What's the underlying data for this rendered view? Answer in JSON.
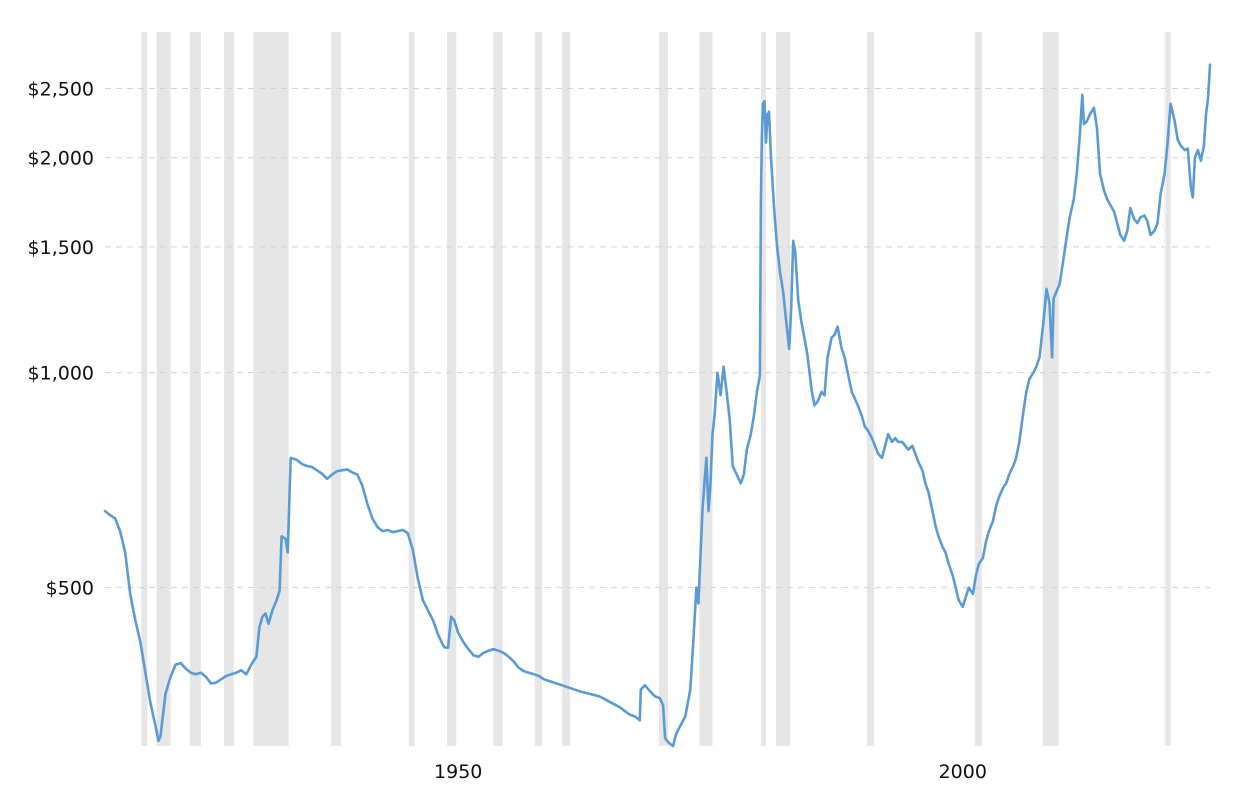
{
  "chart_data": {
    "type": "line",
    "title": "",
    "xlabel": "",
    "ylabel": "",
    "y_scale": "log",
    "xlim": [
      1915,
      2024.5
    ],
    "ylim": [
      300,
      3000
    ],
    "grid": {
      "horizontal": true,
      "vertical": false,
      "style": "dashed"
    },
    "legend": "none",
    "colors": {
      "line": "#5b9bd5",
      "recession": "#e6e6e6",
      "grid": "#d4d4d4",
      "axis_text": "#111111"
    },
    "y_ticks": [
      {
        "value": 500,
        "label": "$500"
      },
      {
        "value": 1000,
        "label": "$1,000"
      },
      {
        "value": 1500,
        "label": "$1,500"
      },
      {
        "value": 2000,
        "label": "$2,000"
      },
      {
        "value": 2500,
        "label": "$2,500"
      }
    ],
    "x_ticks": [
      {
        "value": 1950,
        "label": "1950"
      },
      {
        "value": 2000,
        "label": "2000"
      }
    ],
    "recessions": [
      [
        1918.6,
        1919.2
      ],
      [
        1920.1,
        1921.5
      ],
      [
        1923.4,
        1924.5
      ],
      [
        1926.8,
        1927.8
      ],
      [
        1929.7,
        1933.2
      ],
      [
        1937.4,
        1938.4
      ],
      [
        1945.1,
        1945.7
      ],
      [
        1948.9,
        1949.8
      ],
      [
        1953.5,
        1954.4
      ],
      [
        1957.6,
        1958.3
      ],
      [
        1960.3,
        1961.1
      ],
      [
        1969.9,
        1970.8
      ],
      [
        1973.9,
        1975.2
      ],
      [
        1980.0,
        1980.5
      ],
      [
        1981.5,
        1982.9
      ],
      [
        1990.5,
        1991.2
      ],
      [
        2001.2,
        2001.9
      ],
      [
        2007.9,
        2009.5
      ],
      [
        2020.1,
        2020.4
      ]
    ],
    "series": [
      {
        "values": [
          [
            1915.0,
            640
          ],
          [
            1915.5,
            632
          ],
          [
            1916.0,
            625
          ],
          [
            1916.5,
            600
          ],
          [
            1917.0,
            560
          ],
          [
            1917.5,
            490
          ],
          [
            1918.0,
            450
          ],
          [
            1918.5,
            420
          ],
          [
            1919.0,
            380
          ],
          [
            1919.5,
            345
          ],
          [
            1920.0,
            320
          ],
          [
            1920.3,
            305
          ],
          [
            1920.5,
            310
          ],
          [
            1921.0,
            355
          ],
          [
            1921.5,
            375
          ],
          [
            1922.0,
            390
          ],
          [
            1922.5,
            392
          ],
          [
            1923.0,
            385
          ],
          [
            1923.5,
            380
          ],
          [
            1924.0,
            378
          ],
          [
            1924.5,
            380
          ],
          [
            1925.0,
            375
          ],
          [
            1925.5,
            367
          ],
          [
            1926.0,
            368
          ],
          [
            1926.5,
            372
          ],
          [
            1927.0,
            376
          ],
          [
            1927.5,
            378
          ],
          [
            1928.0,
            380
          ],
          [
            1928.5,
            383
          ],
          [
            1929.0,
            378
          ],
          [
            1929.5,
            390
          ],
          [
            1930.0,
            400
          ],
          [
            1930.3,
            440
          ],
          [
            1930.6,
            455
          ],
          [
            1930.9,
            460
          ],
          [
            1931.2,
            445
          ],
          [
            1931.6,
            465
          ],
          [
            1932.0,
            480
          ],
          [
            1932.3,
            495
          ],
          [
            1932.5,
            590
          ],
          [
            1932.9,
            585
          ],
          [
            1933.1,
            560
          ],
          [
            1933.4,
            760
          ],
          [
            1934.0,
            755
          ],
          [
            1934.5,
            745
          ],
          [
            1935.0,
            740
          ],
          [
            1935.5,
            738
          ],
          [
            1936.0,
            730
          ],
          [
            1936.5,
            722
          ],
          [
            1937.0,
            710
          ],
          [
            1937.5,
            720
          ],
          [
            1938.0,
            728
          ],
          [
            1938.5,
            730
          ],
          [
            1939.0,
            732
          ],
          [
            1939.5,
            725
          ],
          [
            1940.0,
            720
          ],
          [
            1940.5,
            695
          ],
          [
            1941.0,
            655
          ],
          [
            1941.5,
            625
          ],
          [
            1942.0,
            608
          ],
          [
            1942.5,
            600
          ],
          [
            1943.0,
            602
          ],
          [
            1943.5,
            598
          ],
          [
            1944.0,
            600
          ],
          [
            1944.5,
            602
          ],
          [
            1945.0,
            596
          ],
          [
            1945.5,
            565
          ],
          [
            1946.0,
            515
          ],
          [
            1946.5,
            480
          ],
          [
            1947.0,
            465
          ],
          [
            1947.5,
            450
          ],
          [
            1948.0,
            430
          ],
          [
            1948.5,
            415
          ],
          [
            1948.7,
            412
          ],
          [
            1949.0,
            412
          ],
          [
            1949.3,
            455
          ],
          [
            1949.6,
            450
          ],
          [
            1950.0,
            432
          ],
          [
            1950.5,
            420
          ],
          [
            1951.0,
            410
          ],
          [
            1951.5,
            402
          ],
          [
            1952.0,
            400
          ],
          [
            1952.5,
            405
          ],
          [
            1953.0,
            408
          ],
          [
            1953.5,
            410
          ],
          [
            1954.0,
            408
          ],
          [
            1954.5,
            405
          ],
          [
            1955.0,
            400
          ],
          [
            1955.5,
            394
          ],
          [
            1956.0,
            386
          ],
          [
            1956.5,
            382
          ],
          [
            1957.0,
            380
          ],
          [
            1957.5,
            378
          ],
          [
            1958.0,
            376
          ],
          [
            1958.5,
            372
          ],
          [
            1959.0,
            370
          ],
          [
            1960.0,
            366
          ],
          [
            1961.0,
            362
          ],
          [
            1962.0,
            358
          ],
          [
            1963.0,
            355
          ],
          [
            1964.0,
            352
          ],
          [
            1965.0,
            346
          ],
          [
            1966.0,
            340
          ],
          [
            1966.5,
            336
          ],
          [
            1967.0,
            332
          ],
          [
            1967.5,
            330
          ],
          [
            1968.0,
            326
          ],
          [
            1968.1,
            360
          ],
          [
            1968.5,
            365
          ],
          [
            1969.0,
            358
          ],
          [
            1969.5,
            352
          ],
          [
            1970.0,
            350
          ],
          [
            1970.3,
            342
          ],
          [
            1970.5,
            308
          ],
          [
            1970.7,
            305
          ],
          [
            1971.0,
            302
          ],
          [
            1971.3,
            300
          ],
          [
            1971.6,
            312
          ],
          [
            1972.0,
            320
          ],
          [
            1972.5,
            330
          ],
          [
            1973.0,
            360
          ],
          [
            1973.3,
            420
          ],
          [
            1973.6,
            500
          ],
          [
            1973.8,
            475
          ],
          [
            1974.0,
            550
          ],
          [
            1974.2,
            640
          ],
          [
            1974.4,
            700
          ],
          [
            1974.6,
            760
          ],
          [
            1974.8,
            640
          ],
          [
            1975.0,
            700
          ],
          [
            1975.2,
            820
          ],
          [
            1975.4,
            870
          ],
          [
            1975.7,
            1000
          ],
          [
            1976.0,
            930
          ],
          [
            1976.3,
            1020
          ],
          [
            1976.6,
            940
          ],
          [
            1976.9,
            860
          ],
          [
            1977.2,
            740
          ],
          [
            1977.6,
            720
          ],
          [
            1978.0,
            700
          ],
          [
            1978.3,
            720
          ],
          [
            1978.6,
            780
          ],
          [
            1979.0,
            820
          ],
          [
            1979.3,
            870
          ],
          [
            1979.6,
            940
          ],
          [
            1979.9,
            990
          ],
          [
            1980.0,
            1750
          ],
          [
            1980.1,
            2150
          ],
          [
            1980.2,
            2380
          ],
          [
            1980.35,
            2400
          ],
          [
            1980.5,
            2100
          ],
          [
            1980.65,
            2300
          ],
          [
            1980.8,
            2320
          ],
          [
            1981.0,
            2000
          ],
          [
            1981.3,
            1700
          ],
          [
            1981.6,
            1500
          ],
          [
            1981.9,
            1380
          ],
          [
            1982.2,
            1300
          ],
          [
            1982.5,
            1180
          ],
          [
            1982.8,
            1080
          ],
          [
            1983.0,
            1230
          ],
          [
            1983.2,
            1530
          ],
          [
            1983.4,
            1480
          ],
          [
            1983.7,
            1260
          ],
          [
            1984.0,
            1180
          ],
          [
            1984.3,
            1120
          ],
          [
            1984.6,
            1060
          ],
          [
            1985.0,
            950
          ],
          [
            1985.3,
            900
          ],
          [
            1985.6,
            910
          ],
          [
            1986.0,
            940
          ],
          [
            1986.3,
            930
          ],
          [
            1986.6,
            1050
          ],
          [
            1987.0,
            1120
          ],
          [
            1987.3,
            1130
          ],
          [
            1987.6,
            1160
          ],
          [
            1988.0,
            1080
          ],
          [
            1988.3,
            1050
          ],
          [
            1988.6,
            1000
          ],
          [
            1989.0,
            940
          ],
          [
            1989.3,
            920
          ],
          [
            1989.6,
            900
          ],
          [
            1990.0,
            870
          ],
          [
            1990.3,
            840
          ],
          [
            1990.6,
            830
          ],
          [
            1991.0,
            810
          ],
          [
            1991.3,
            790
          ],
          [
            1991.6,
            770
          ],
          [
            1992.0,
            760
          ],
          [
            1992.3,
            790
          ],
          [
            1992.6,
            820
          ],
          [
            1993.0,
            800
          ],
          [
            1993.3,
            810
          ],
          [
            1993.6,
            800
          ],
          [
            1994.0,
            800
          ],
          [
            1994.3,
            790
          ],
          [
            1994.6,
            780
          ],
          [
            1995.0,
            790
          ],
          [
            1995.3,
            770
          ],
          [
            1995.6,
            750
          ],
          [
            1996.0,
            730
          ],
          [
            1996.3,
            700
          ],
          [
            1996.6,
            680
          ],
          [
            1997.0,
            640
          ],
          [
            1997.3,
            610
          ],
          [
            1997.6,
            590
          ],
          [
            1998.0,
            570
          ],
          [
            1998.3,
            560
          ],
          [
            1998.6,
            540
          ],
          [
            1999.0,
            520
          ],
          [
            1999.3,
            500
          ],
          [
            1999.6,
            480
          ],
          [
            2000.0,
            470
          ],
          [
            2000.3,
            485
          ],
          [
            2000.6,
            500
          ],
          [
            2001.0,
            490
          ],
          [
            2001.3,
            520
          ],
          [
            2001.6,
            540
          ],
          [
            2002.0,
            550
          ],
          [
            2002.3,
            580
          ],
          [
            2002.6,
            600
          ],
          [
            2003.0,
            620
          ],
          [
            2003.3,
            650
          ],
          [
            2003.6,
            670
          ],
          [
            2004.0,
            690
          ],
          [
            2004.3,
            700
          ],
          [
            2004.6,
            720
          ],
          [
            2005.0,
            740
          ],
          [
            2005.3,
            760
          ],
          [
            2005.6,
            800
          ],
          [
            2006.0,
            880
          ],
          [
            2006.3,
            940
          ],
          [
            2006.6,
            980
          ],
          [
            2007.0,
            1000
          ],
          [
            2007.3,
            1020
          ],
          [
            2007.6,
            1050
          ],
          [
            2008.0,
            1180
          ],
          [
            2008.3,
            1310
          ],
          [
            2008.6,
            1250
          ],
          [
            2008.85,
            1050
          ],
          [
            2009.0,
            1270
          ],
          [
            2009.3,
            1300
          ],
          [
            2009.6,
            1330
          ],
          [
            2010.0,
            1450
          ],
          [
            2010.3,
            1550
          ],
          [
            2010.6,
            1650
          ],
          [
            2011.0,
            1750
          ],
          [
            2011.3,
            1900
          ],
          [
            2011.6,
            2150
          ],
          [
            2011.85,
            2450
          ],
          [
            2012.0,
            2230
          ],
          [
            2012.3,
            2250
          ],
          [
            2012.6,
            2300
          ],
          [
            2013.0,
            2350
          ],
          [
            2013.3,
            2200
          ],
          [
            2013.6,
            1900
          ],
          [
            2014.0,
            1800
          ],
          [
            2014.3,
            1750
          ],
          [
            2014.6,
            1720
          ],
          [
            2015.0,
            1680
          ],
          [
            2015.3,
            1620
          ],
          [
            2015.6,
            1560
          ],
          [
            2016.0,
            1530
          ],
          [
            2016.3,
            1580
          ],
          [
            2016.6,
            1700
          ],
          [
            2017.0,
            1640
          ],
          [
            2017.3,
            1620
          ],
          [
            2017.6,
            1650
          ],
          [
            2018.0,
            1660
          ],
          [
            2018.3,
            1630
          ],
          [
            2018.6,
            1560
          ],
          [
            2019.0,
            1580
          ],
          [
            2019.3,
            1620
          ],
          [
            2019.6,
            1780
          ],
          [
            2020.0,
            1900
          ],
          [
            2020.3,
            2100
          ],
          [
            2020.6,
            2380
          ],
          [
            2021.0,
            2250
          ],
          [
            2021.3,
            2120
          ],
          [
            2021.6,
            2080
          ],
          [
            2022.0,
            2050
          ],
          [
            2022.3,
            2060
          ],
          [
            2022.6,
            1820
          ],
          [
            2022.8,
            1760
          ],
          [
            2023.0,
            2000
          ],
          [
            2023.3,
            2050
          ],
          [
            2023.6,
            1980
          ],
          [
            2023.9,
            2080
          ],
          [
            2024.1,
            2300
          ],
          [
            2024.3,
            2420
          ],
          [
            2024.5,
            2700
          ]
        ]
      }
    ]
  }
}
